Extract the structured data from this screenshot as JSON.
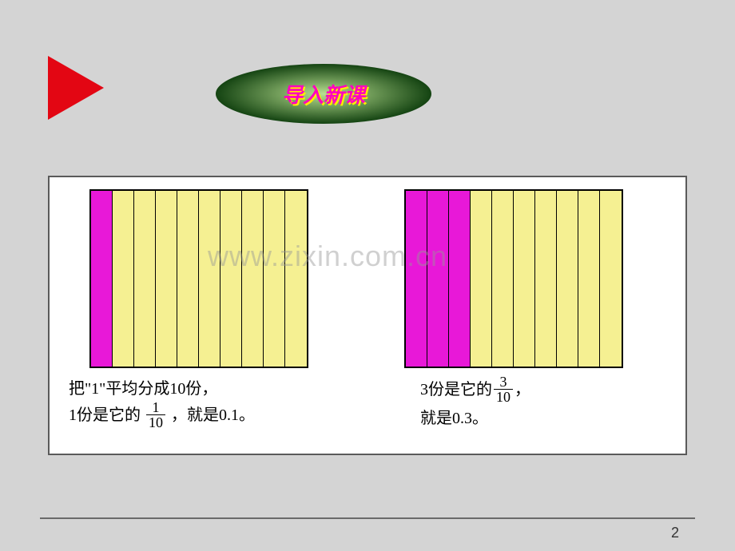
{
  "colors": {
    "triangle": "#e30613",
    "ellipse_gradient_dark": "#0a3a0a",
    "ellipse_gradient_light": "#b8e090",
    "bar_fill": "#f5f092",
    "bar_highlight": "#e818d8",
    "title_text": "#ff00c0",
    "title_shadow": "#ffeb00"
  },
  "title": "导入新课",
  "watermark": "www.zixin.com.cn",
  "left_chart": {
    "total_bars": 10,
    "highlighted": 1,
    "caption_line1_prefix": "把\"1\"平均分成10份，",
    "caption_line2_prefix": "1份是它的",
    "fraction_num": "1",
    "fraction_den": "10",
    "caption_line2_suffix": "，就是0.1。"
  },
  "right_chart": {
    "total_bars": 10,
    "highlighted": 3,
    "caption_line1_prefix": "3份是它的",
    "fraction_num": "3",
    "fraction_den": "10",
    "caption_line1_suffix": "，",
    "caption_line2": "就是0.3。"
  },
  "page_number": "2"
}
